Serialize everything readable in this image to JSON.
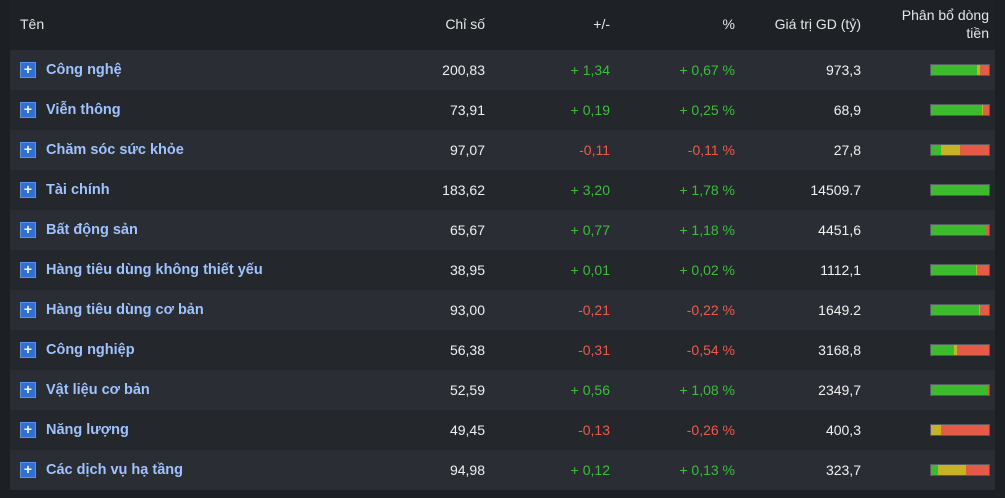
{
  "header": {
    "name": "Tên",
    "index": "Chỉ số",
    "change": "+/-",
    "percent": "%",
    "value": "Giá trị GD (tỷ)",
    "flow_line1": "Phân bổ dòng",
    "flow_line2": "tiền"
  },
  "colors": {
    "up": "#3bbf3b",
    "down": "#ef5a4a",
    "inflow": "#3cbb2c",
    "neutral": "#c8b226",
    "outflow": "#e65a48"
  },
  "rows": [
    {
      "name": "Công nghệ",
      "index": "200,83",
      "change": "+ 1,34",
      "percent": "+ 0,67 %",
      "value": "973,3",
      "dir": "up",
      "flow": [
        0.8,
        0.05,
        0.15
      ]
    },
    {
      "name": "Viễn thông",
      "index": "73,91",
      "change": "+ 0,19",
      "percent": "+ 0,25 %",
      "value": "68,9",
      "dir": "up",
      "flow": [
        0.88,
        0.02,
        0.1
      ]
    },
    {
      "name": "Chăm sóc sức khỏe",
      "index": "97,07",
      "change": "-0,11",
      "percent": "-0,11 %",
      "value": "27,8",
      "dir": "down",
      "flow": [
        0.18,
        0.32,
        0.5
      ]
    },
    {
      "name": "Tài chính",
      "index": "183,62",
      "change": "+ 3,20",
      "percent": "+ 1,78 %",
      "value": "14509.7",
      "dir": "up",
      "flow": [
        1.0,
        0.0,
        0.0
      ]
    },
    {
      "name": "Bất động sản",
      "index": "65,67",
      "change": "+ 0,77",
      "percent": "+ 1,18 %",
      "value": "4451,6",
      "dir": "up",
      "flow": [
        0.95,
        0.0,
        0.05
      ]
    },
    {
      "name": "Hàng tiêu dùng không thiết yếu",
      "index": "38,95",
      "change": "+ 0,01",
      "percent": "+ 0,02 %",
      "value": "1112,1",
      "dir": "up",
      "flow": [
        0.77,
        0.03,
        0.2
      ]
    },
    {
      "name": "Hàng tiêu dùng cơ bản",
      "index": "93,00",
      "change": "-0,21",
      "percent": "-0,22 %",
      "value": "1649.2",
      "dir": "down",
      "flow": [
        0.82,
        0.03,
        0.15
      ]
    },
    {
      "name": "Công nghiệp",
      "index": "56,38",
      "change": "-0,31",
      "percent": "-0,54 %",
      "value": "3168,8",
      "dir": "down",
      "flow": [
        0.4,
        0.05,
        0.55
      ]
    },
    {
      "name": "Vật liệu cơ bản",
      "index": "52,59",
      "change": "+ 0,56",
      "percent": "+ 1,08 %",
      "value": "2349,7",
      "dir": "up",
      "flow": [
        0.97,
        0.0,
        0.03
      ]
    },
    {
      "name": "Năng lượng",
      "index": "49,45",
      "change": "-0,13",
      "percent": "-0,26 %",
      "value": "400,3",
      "dir": "down",
      "flow": [
        0.0,
        0.17,
        0.83
      ]
    },
    {
      "name": "Các dịch vụ hạ tầng",
      "index": "94,98",
      "change": "+ 0,12",
      "percent": "+ 0,13 %",
      "value": "323,7",
      "dir": "up",
      "flow": [
        0.12,
        0.48,
        0.4
      ]
    }
  ]
}
